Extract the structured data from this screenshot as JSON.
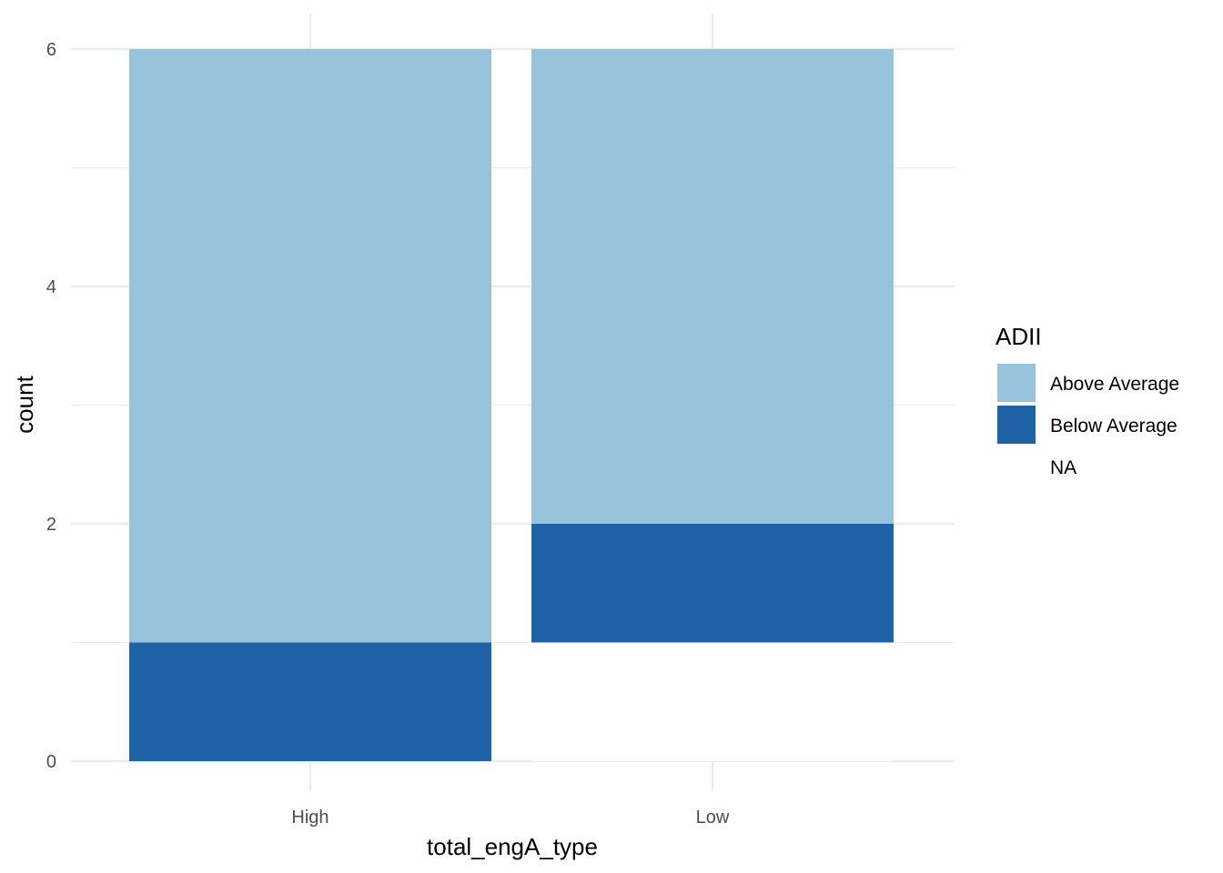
{
  "chart_data": {
    "type": "bar",
    "stacked": true,
    "categories": [
      "High",
      "Low"
    ],
    "series": [
      {
        "name": "Above Average",
        "color": "#98c3dc",
        "values": [
          5,
          4
        ]
      },
      {
        "name": "Below Average",
        "color": "#1f63a6",
        "values": [
          1,
          1
        ]
      },
      {
        "name": "NA",
        "color": "#ffffff",
        "values": [
          0,
          1
        ]
      }
    ],
    "xlabel": "total_engA_type",
    "ylabel": "count",
    "ylim": [
      0,
      6
    ],
    "yticks": [
      "0",
      "2",
      "4",
      "6"
    ],
    "grid": true,
    "legend": {
      "title": "ADII",
      "placement": "right",
      "entries": [
        "Above Average",
        "Below Average",
        "NA"
      ]
    }
  }
}
